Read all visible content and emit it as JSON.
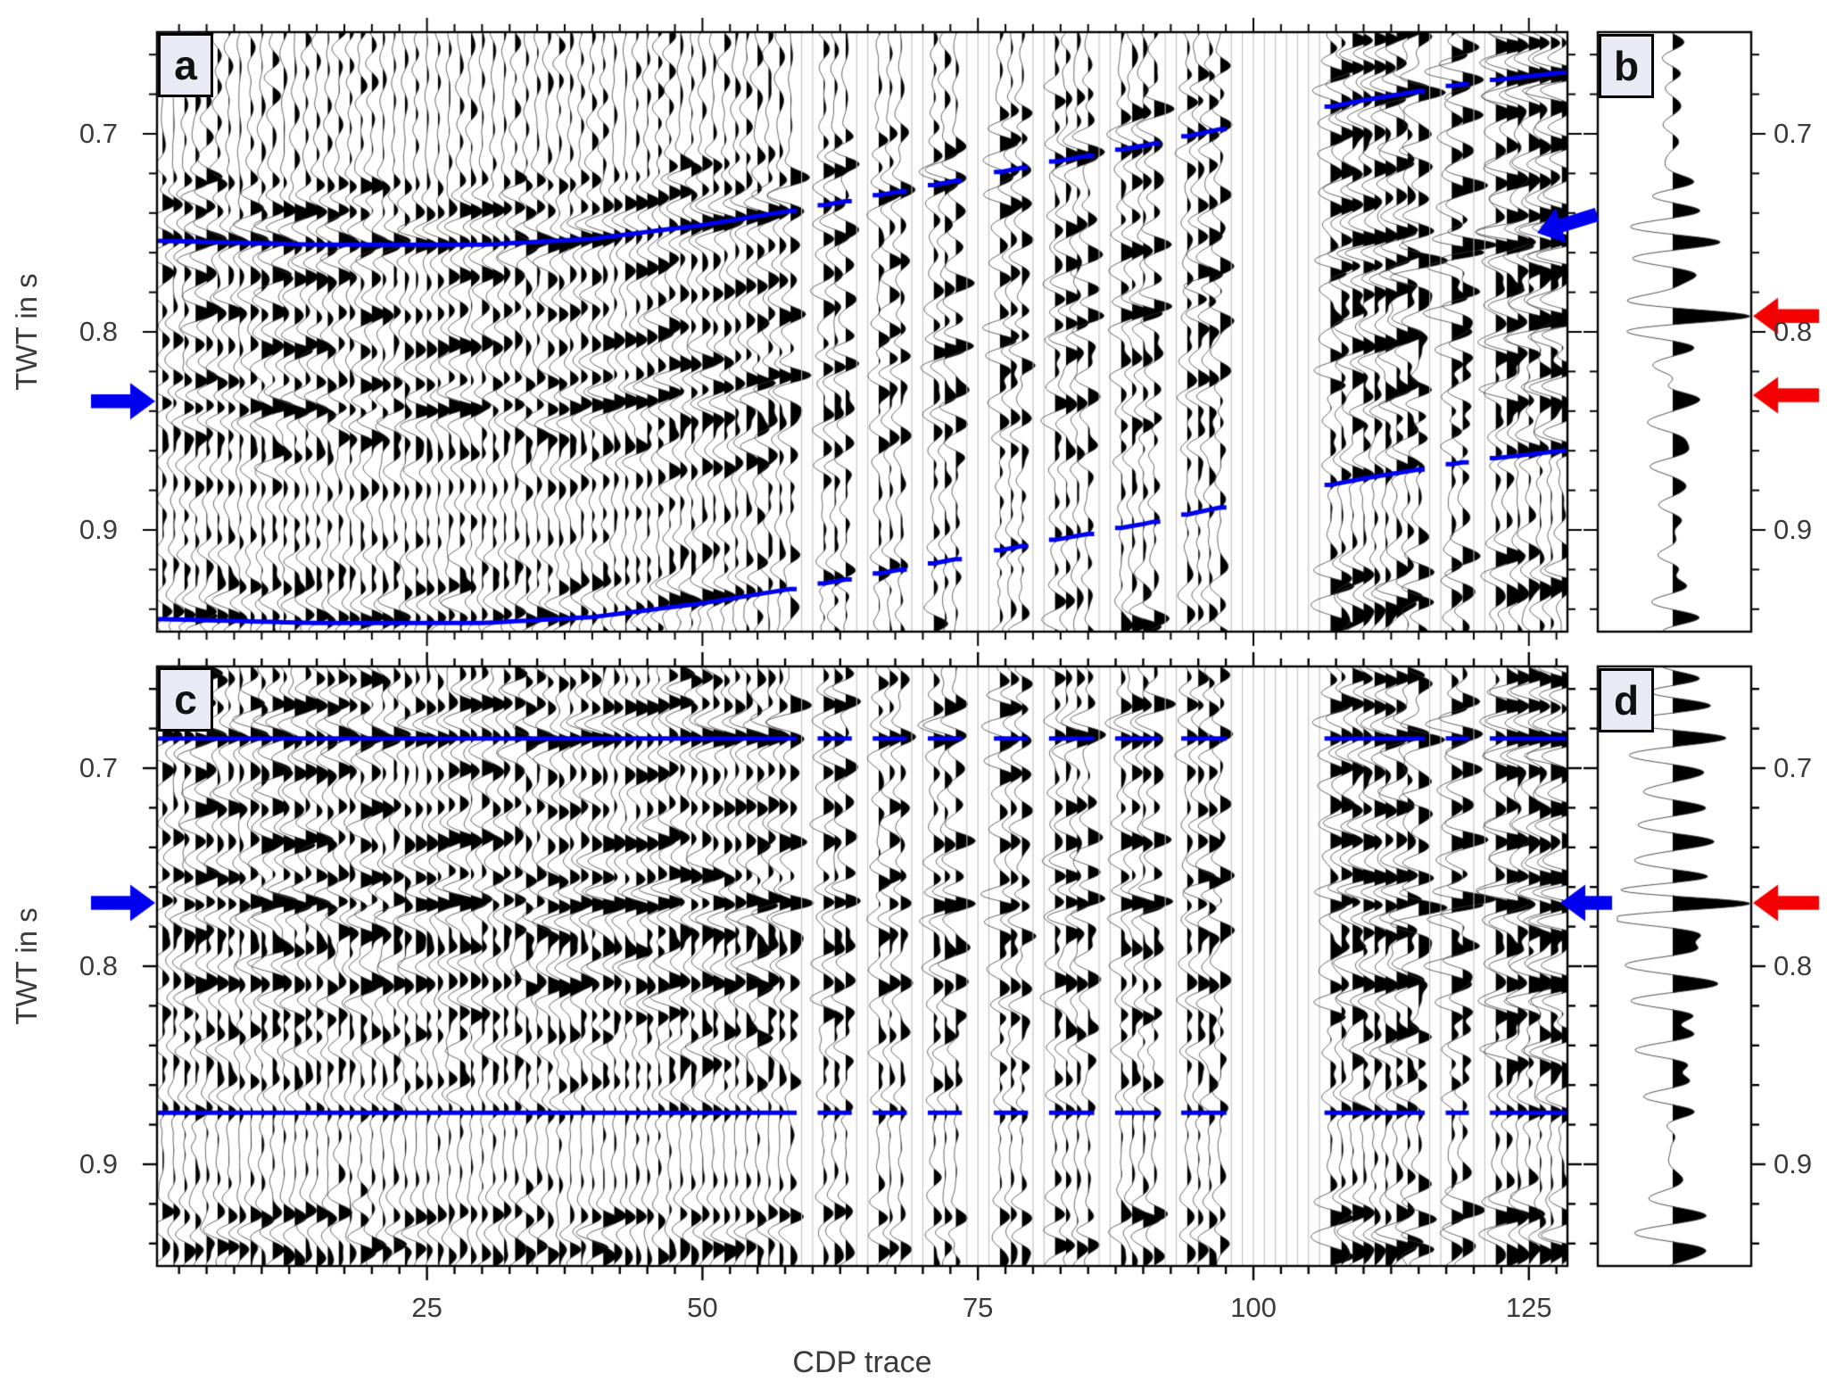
{
  "panels": {
    "a": {
      "label": "a",
      "description": "CDP wiggle section before horizon flattening, with picked blue horizons"
    },
    "b": {
      "label": "b",
      "description": "stacked trace of section a, red arrows mark doubled reflection events"
    },
    "c": {
      "label": "c",
      "description": "CDP wiggle section after horizon flattening, blue horizons flat"
    },
    "d": {
      "label": "d",
      "description": "stacked trace of section c, red arrow marks focused reflection event"
    }
  },
  "colors": {
    "horizon_blue": "#0000f0",
    "arrow_blue": "#0000f0",
    "arrow_red": "#f50000",
    "trace_fill": "#000000",
    "trace_line": "#3c3c3c",
    "dead_trace_line": "#c0c0c0",
    "frame": "#000000",
    "label_box_bg": "#eaeaf4",
    "text": "#3a3a3a"
  },
  "chart_data": {
    "type": "line",
    "subtype": "seismic-wiggle-variable-area",
    "title": "",
    "xlabel": "CDP trace",
    "ylabel": "TWT in s",
    "x_range": [
      1,
      128
    ],
    "trace_count": 128,
    "time_axis_range_s": [
      0.6486,
      0.9514
    ],
    "x_major_ticks": [
      25,
      50,
      75,
      100,
      125
    ],
    "x_major_tick_labels": [
      "25",
      "50",
      "75",
      "100",
      "125"
    ],
    "x_minor_step": 2.5,
    "y_major_ticks": [
      0.7,
      0.8,
      0.9
    ],
    "y_major_tick_labels": [
      "0.7",
      "0.8",
      "0.9"
    ],
    "y_minor_step": 0.02,
    "grid": false,
    "legend": "none",
    "dead_trace_ranges": [
      [
        59,
        60
      ],
      [
        64,
        65
      ],
      [
        69,
        70
      ],
      [
        74,
        76
      ],
      [
        80,
        81
      ],
      [
        86,
        87
      ],
      [
        92,
        93
      ],
      [
        98,
        106
      ],
      [
        116,
        117
      ],
      [
        120,
        121
      ]
    ],
    "horizons": {
      "a_upper_points": [
        [
          1,
          0.754
        ],
        [
          15,
          0.756
        ],
        [
          30,
          0.756
        ],
        [
          40,
          0.753
        ],
        [
          50,
          0.746
        ],
        [
          60,
          0.737
        ],
        [
          70,
          0.727
        ],
        [
          80,
          0.716
        ],
        [
          90,
          0.706
        ],
        [
          100,
          0.694
        ],
        [
          110,
          0.683
        ],
        [
          120,
          0.674
        ],
        [
          128,
          0.669
        ]
      ],
      "a_lower_offset_s": 0.191,
      "c_upper_s": 0.685,
      "c_lower_s": 0.874
    },
    "annotations": {
      "blue_arrows": [
        {
          "panel": "a",
          "side": "left",
          "t_s": 0.835,
          "angle_deg": 0
        },
        {
          "panel": "a",
          "side": "right",
          "t_s": 0.75,
          "angle_deg": 163
        },
        {
          "panel": "c",
          "side": "left",
          "t_s": 0.768,
          "angle_deg": 0
        },
        {
          "panel": "c",
          "side": "right",
          "t_s": 0.768,
          "angle_deg": 180
        }
      ],
      "red_arrows": [
        {
          "panel": "b",
          "t_s": 0.792
        },
        {
          "panel": "b",
          "t_s": 0.832
        },
        {
          "panel": "d",
          "t_s": 0.768
        }
      ]
    },
    "synthesis": {
      "wavelet_hz": 52,
      "events_time_amp": [
        [
          0.655,
          0.8
        ],
        [
          0.668,
          0.9
        ],
        [
          0.6775,
          -0.7
        ],
        [
          0.6845,
          1.0
        ],
        [
          0.694,
          -0.6
        ],
        [
          0.702,
          0.75
        ],
        [
          0.712,
          -0.5
        ],
        [
          0.72,
          0.65
        ],
        [
          0.729,
          -0.55
        ],
        [
          0.7375,
          0.8
        ],
        [
          0.747,
          -0.5
        ],
        [
          0.7555,
          0.7
        ],
        [
          0.7625,
          -0.6
        ],
        [
          0.768,
          1.25
        ],
        [
          0.776,
          -0.7
        ],
        [
          0.7835,
          0.8
        ],
        [
          0.7915,
          0.85
        ],
        [
          0.8,
          -0.6
        ],
        [
          0.8085,
          0.7
        ],
        [
          0.817,
          -0.5
        ],
        [
          0.825,
          0.75
        ],
        [
          0.8335,
          0.8
        ],
        [
          0.842,
          -0.55
        ],
        [
          0.85,
          0.6
        ],
        [
          0.859,
          0.55
        ],
        [
          0.8665,
          -0.5
        ],
        [
          0.874,
          0.9
        ],
        [
          0.885,
          0.4
        ],
        [
          0.897,
          -0.35
        ],
        [
          0.908,
          0.45
        ],
        [
          0.9175,
          -0.5
        ],
        [
          0.9255,
          0.8
        ],
        [
          0.934,
          -0.6
        ],
        [
          0.9415,
          0.9
        ],
        [
          0.948,
          0.7
        ]
      ],
      "amplitude_envelope": [
        [
          0.6487,
          1.05
        ],
        [
          0.67,
          1.15
        ],
        [
          0.7,
          1.0
        ],
        [
          0.75,
          1.08
        ],
        [
          0.8,
          0.95
        ],
        [
          0.845,
          0.88
        ],
        [
          0.868,
          0.7
        ],
        [
          0.88,
          0.42
        ],
        [
          0.9,
          0.45
        ],
        [
          0.915,
          0.75
        ],
        [
          0.928,
          1.0
        ],
        [
          0.9513,
          1.08
        ]
      ],
      "strong_cluster_traces": [
        107,
        128
      ]
    }
  }
}
